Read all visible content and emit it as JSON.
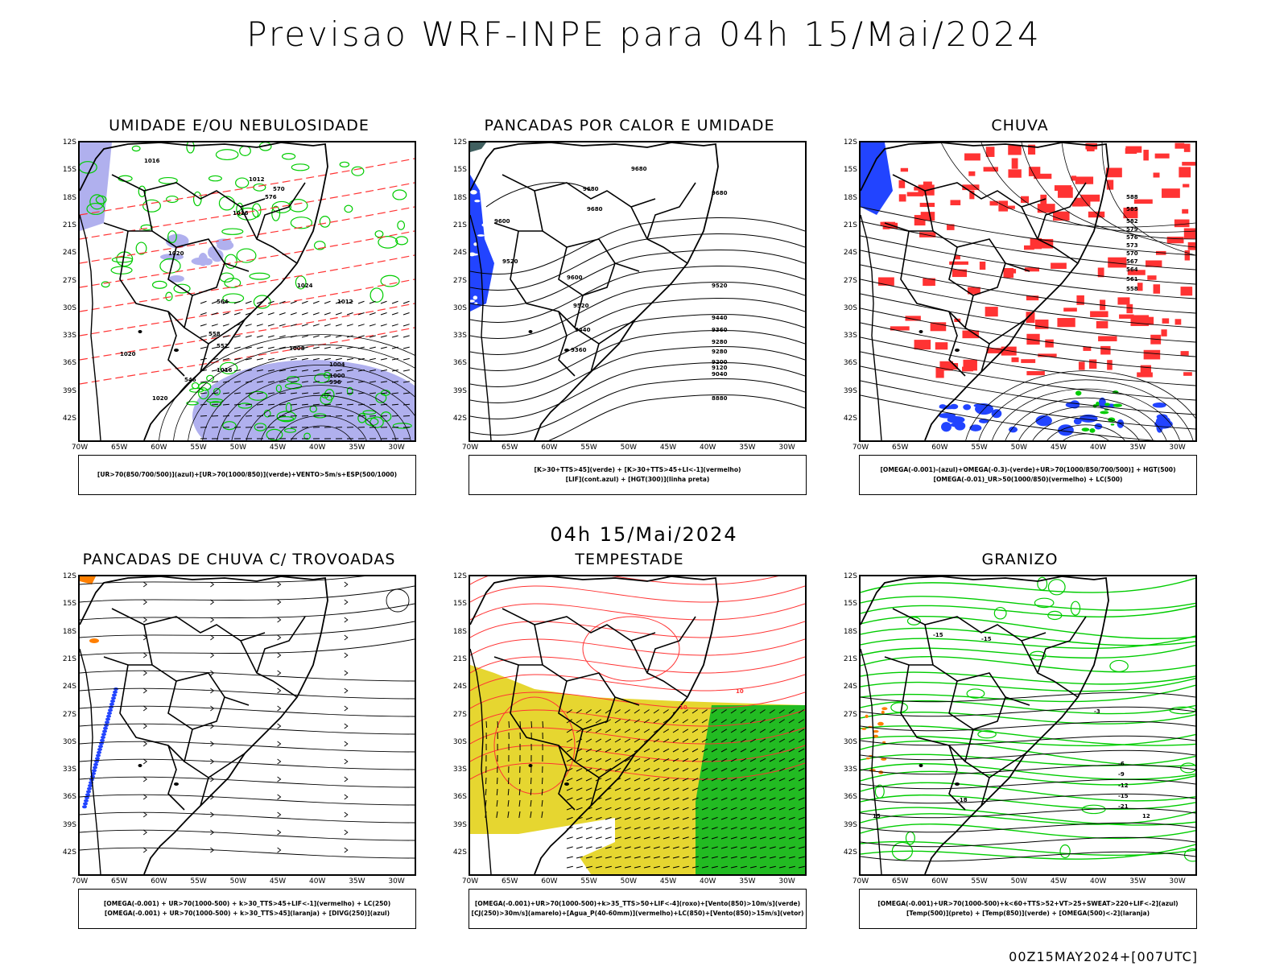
{
  "header": {
    "title": "Previsao WRF-INPE  para 04h 15/Mai/2024"
  },
  "mid_date": "04h 15/Mai/2024",
  "footer_code": "00Z15MAY2024+[007UTC]",
  "axes": {
    "lat": [
      "12S",
      "15S",
      "18S",
      "21S",
      "24S",
      "27S",
      "30S",
      "33S",
      "36S",
      "39S",
      "42S"
    ],
    "lon": [
      "70W",
      "65W",
      "60W",
      "55W",
      "50W",
      "45W",
      "40W",
      "35W",
      "30W"
    ]
  },
  "colors": {
    "red": "#ff3333",
    "green": "#00cc00",
    "blue": "#2244ff",
    "lavender": "#b0b0ee",
    "yellow": "#e6d630",
    "orange": "#ff7f00"
  },
  "panels": [
    {
      "title": "UMIDADE E/OU NEBULOSIDADE",
      "legend": [
        "[UR>70(850/700/500)](azul)+[UR>70(1000/850)](verde)+VENTO>5m/s+ESP(500/1000)"
      ],
      "labels": [
        "1016",
        "1012",
        "1016",
        "1020",
        "1024",
        "1016",
        "1012",
        "1008",
        "1004",
        "1000",
        "996",
        "1020",
        "1020",
        "576",
        "570",
        "564",
        "558",
        "552",
        "546"
      ]
    },
    {
      "title": "PANCADAS POR CALOR E UMIDADE",
      "legend": [
        "[K>30+TTS>45](verde)  +  [K>30+TTS>45+LI<-1](vermelho)",
        "[LIF](cont.azul)  +  [HGT(300)](linha preta)"
      ],
      "labels": [
        "9680",
        "9680",
        "9680",
        "9600",
        "9520",
        "9680",
        "9600",
        "9520",
        "9520",
        "9440",
        "9440",
        "9360",
        "9360",
        "9280",
        "9280",
        "9200",
        "9120",
        "9040",
        "8880"
      ]
    },
    {
      "title": "CHUVA",
      "legend": [
        "[OMEGA(-0.001)-(azul)+OMEGA(-0.3)-(verde)+UR>70(1000/850/700/500)]  +  HGT(500)",
        "[OMEGA(-0.01)_UR>50(1000/850)(vermelho)  +  LC(500)"
      ],
      "labels": [
        "588",
        "585",
        "582",
        "579",
        "576",
        "573",
        "570",
        "567",
        "564",
        "561",
        "558"
      ]
    },
    {
      "title": "PANCADAS DE CHUVA C/ TROVOADAS",
      "legend": [
        "[OMEGA(-0.001)  +  UR>70(1000-500)  +  k>30_TTS>45+LIF<-1](vermelho)  +  LC(250)",
        "[OMEGA(-0.001)  +  UR>70(1000-500)  +  k>30_TTS>45](laranja)  +  [DIVG(250)](azul)"
      ],
      "labels": []
    },
    {
      "title": "TEMPESTADE",
      "legend": [
        "[OMEGA(-0.001)+UR>70(1000-500)+k>35_TTS>50+LIF<-4](roxo)+[Vento(850)>10m/s](verde)",
        "[CJ(250)>30m/s](amarelo)+[Agua_P(40-60mm)](vermelho)+LC(850)+[Vento(850)>15m/s](vetor)"
      ],
      "labels": [
        "10",
        "10"
      ]
    },
    {
      "title": "GRANIZO",
      "legend": [
        "[OMEGA(-0.001)+UR>70(1000-500)+k<60+TTS>52+VT>25+SWEAT>220+LIF<-2](azul)",
        "[Temp(500)](preto)  +  [Temp(850)](verde)  +  [OMEGA(500)<-2](laranja)"
      ],
      "labels": [
        "-15",
        "-15",
        "-3",
        "-6",
        "-9",
        "-12",
        "-15",
        "-18",
        "-21",
        "12",
        "15"
      ]
    }
  ]
}
